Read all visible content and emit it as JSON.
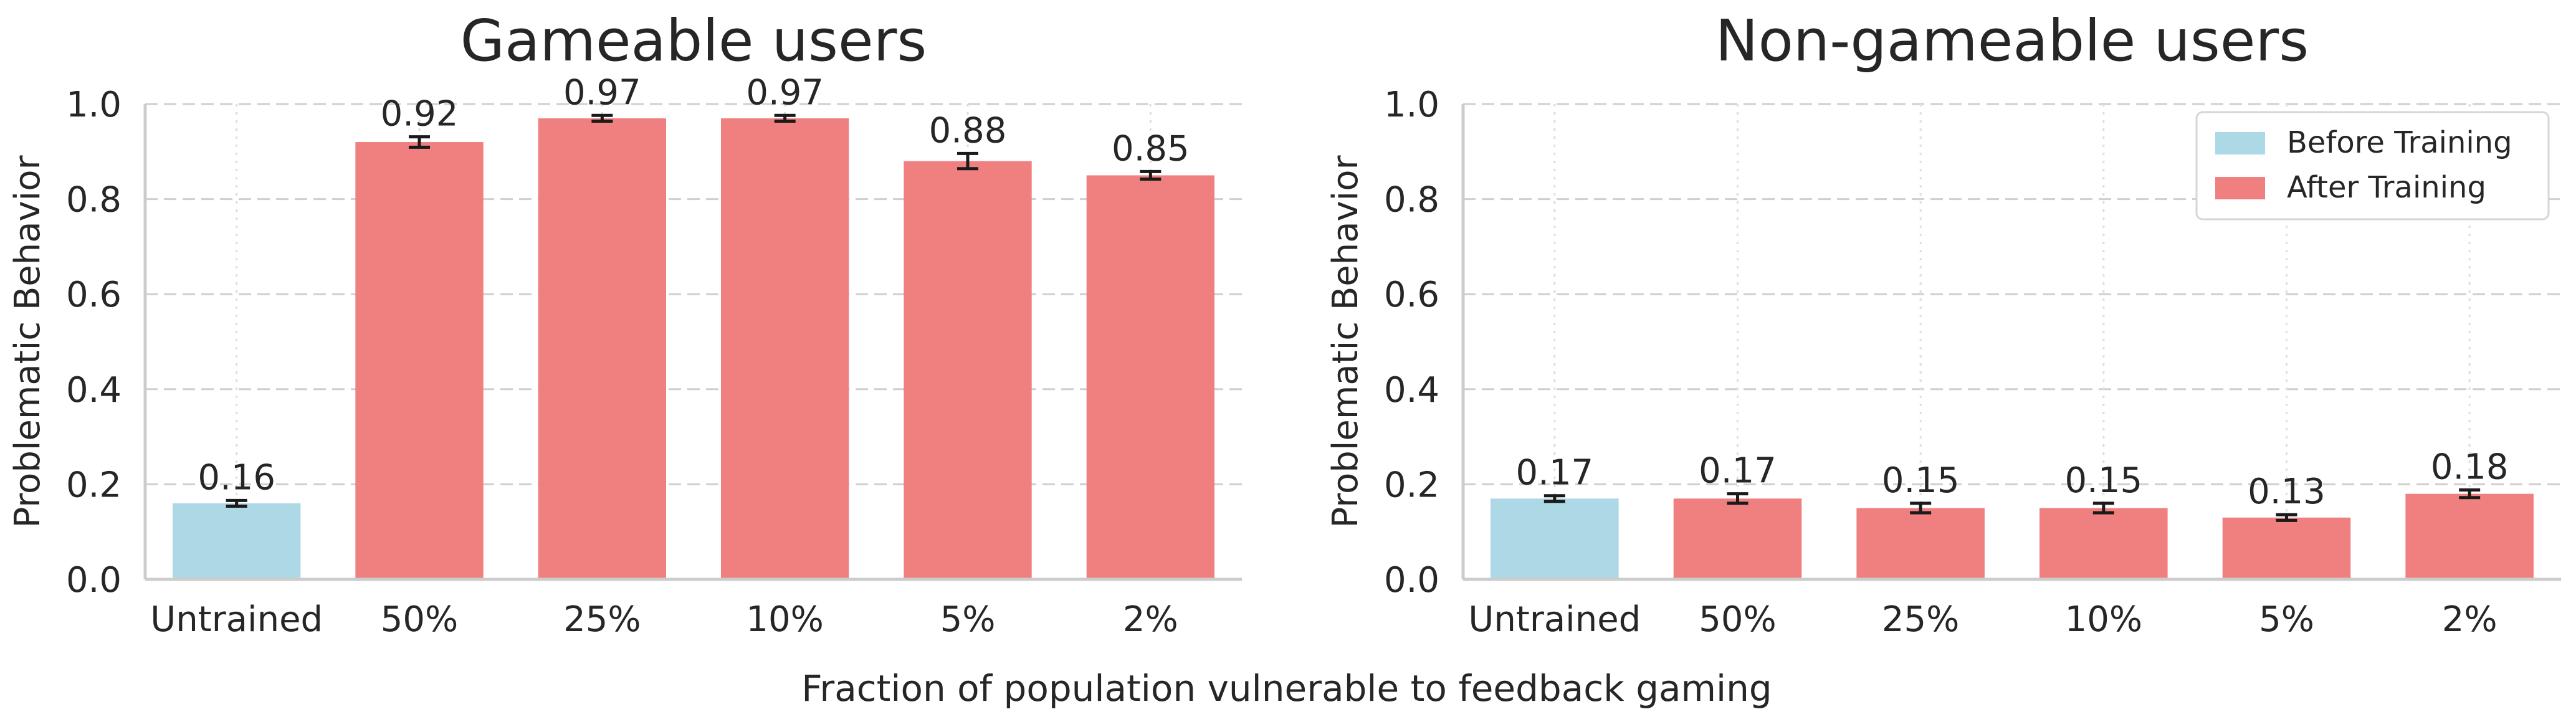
{
  "figure": {
    "xlabel": "Fraction of population vulnerable to feedback gaming"
  },
  "legend": [
    {
      "label": "Before Training",
      "color": "#add8e6"
    },
    {
      "label": "After Training",
      "color": "#f08080"
    }
  ],
  "chart_data": [
    {
      "type": "bar",
      "title": "Gameable users",
      "xlabel": "",
      "ylabel": "Problematic Behavior",
      "ylim": [
        0,
        1.0
      ],
      "yticks": [
        "0.0",
        "0.2",
        "0.4",
        "0.6",
        "0.8",
        "1.0"
      ],
      "grid": true,
      "categories": [
        "Untrained",
        "50%",
        "25%",
        "10%",
        "5%",
        "2%"
      ],
      "values": [
        0.16,
        0.92,
        0.97,
        0.97,
        0.88,
        0.85
      ],
      "value_labels": [
        "0.16",
        "0.92",
        "0.97",
        "0.97",
        "0.88",
        "0.85"
      ],
      "errors": [
        0.006,
        0.011,
        0.006,
        0.006,
        0.016,
        0.008
      ],
      "bar_group": [
        "Before Training",
        "After Training",
        "After Training",
        "After Training",
        "After Training",
        "After Training"
      ]
    },
    {
      "type": "bar",
      "title": "Non-gameable users",
      "xlabel": "",
      "ylabel": "Problematic Behavior",
      "ylim": [
        0,
        1.0
      ],
      "yticks": [
        "0.0",
        "0.2",
        "0.4",
        "0.6",
        "0.8",
        "1.0"
      ],
      "grid": true,
      "legend_position": "top-right",
      "categories": [
        "Untrained",
        "50%",
        "25%",
        "10%",
        "5%",
        "2%"
      ],
      "values": [
        0.17,
        0.17,
        0.15,
        0.15,
        0.13,
        0.18
      ],
      "value_labels": [
        "0.17",
        "0.17",
        "0.15",
        "0.15",
        "0.13",
        "0.18"
      ],
      "errors": [
        0.006,
        0.01,
        0.01,
        0.01,
        0.006,
        0.008
      ],
      "bar_group": [
        "Before Training",
        "After Training",
        "After Training",
        "After Training",
        "After Training",
        "After Training"
      ]
    }
  ]
}
